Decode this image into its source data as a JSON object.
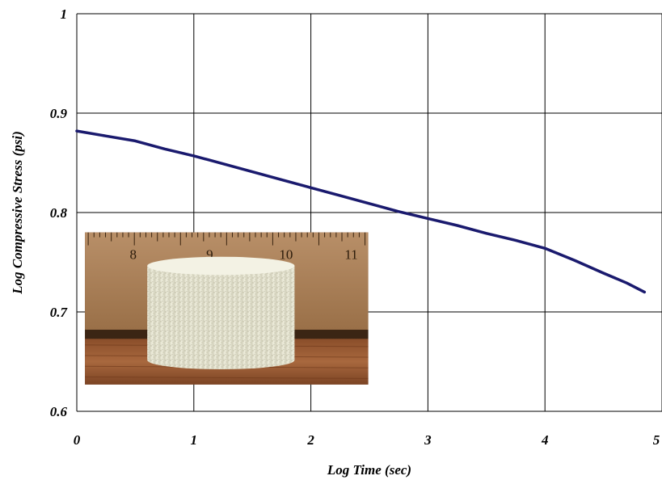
{
  "chart_data": {
    "type": "line",
    "title": "",
    "xlabel": "Log Time (sec)",
    "ylabel": "Log Compressive Stress (psi)",
    "xlim": [
      0,
      5
    ],
    "ylim": [
      0.6,
      1
    ],
    "x_ticks": [
      "0",
      "1",
      "2",
      "3",
      "4",
      "5"
    ],
    "y_ticks": [
      "0.6",
      "0.7",
      "0.8",
      "0.9",
      "1"
    ],
    "grid": true,
    "legend": "none",
    "series": [
      {
        "color": "#1a1a6e",
        "x": [
          0,
          0.25,
          0.5,
          0.75,
          1.0,
          1.25,
          1.5,
          1.75,
          2.0,
          2.25,
          2.5,
          2.75,
          3.0,
          3.25,
          3.5,
          3.75,
          4.0,
          4.25,
          4.5,
          4.7,
          4.85
        ],
        "y": [
          0.882,
          0.877,
          0.872,
          0.864,
          0.857,
          0.849,
          0.841,
          0.833,
          0.825,
          0.817,
          0.809,
          0.801,
          0.794,
          0.787,
          0.779,
          0.772,
          0.764,
          0.752,
          0.739,
          0.729,
          0.72
        ]
      }
    ]
  },
  "inset_photo": {
    "description_icon": "foam-sample-photo-icon",
    "ruler_labels": [
      "8",
      "9",
      "10",
      "11"
    ]
  }
}
